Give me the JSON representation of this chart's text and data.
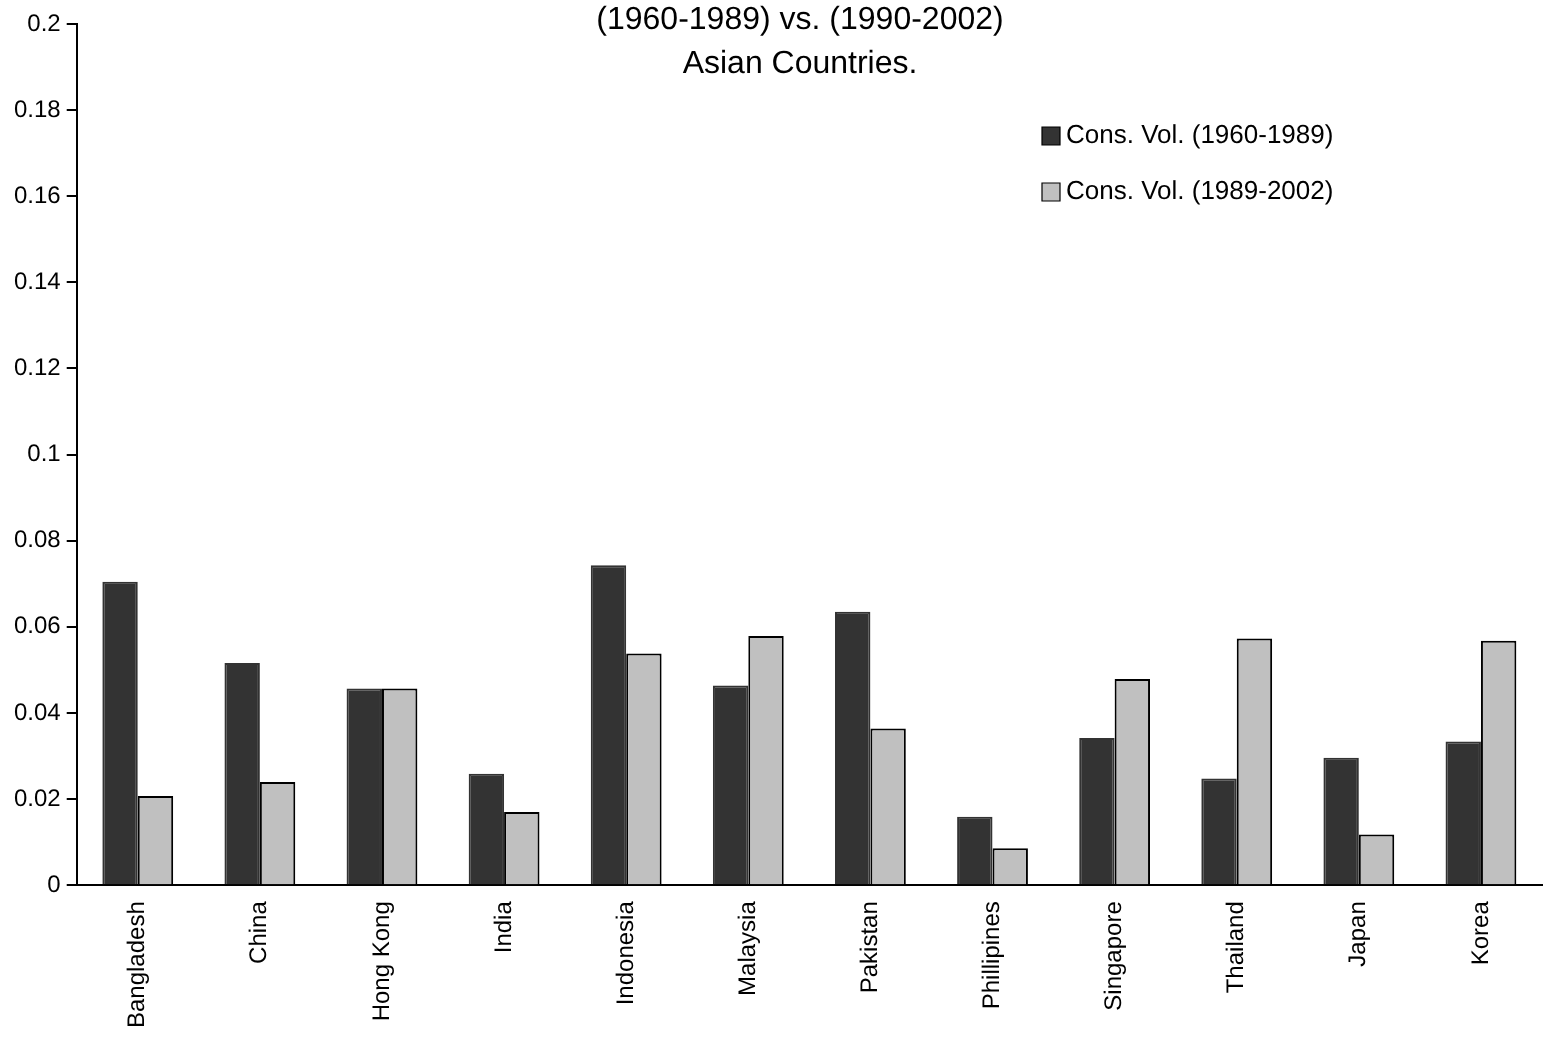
{
  "chart_data": {
    "type": "bar",
    "title": [
      "(1960-1989) vs. (1990-2002)",
      "Asian Countries."
    ],
    "categories": [
      "Bangladesh",
      "China",
      "Hong Kong",
      "India",
      "Indonesia",
      "Malaysia",
      "Pakistan",
      "Phillipines",
      "Singapore",
      "Thailand",
      "Japan",
      "Korea"
    ],
    "series": [
      {
        "name": "Cons. Vol. (1960-1989)",
        "color": "#333333",
        "values": [
          0.0705,
          0.0516,
          0.0457,
          0.0259,
          0.0743,
          0.0464,
          0.0635,
          0.0159,
          0.0342,
          0.0248,
          0.0296,
          0.0334
        ]
      },
      {
        "name": "Cons. Vol. (1989-2002)",
        "color": "#c0c0c0",
        "values": [
          0.0207,
          0.024,
          0.0457,
          0.017,
          0.0538,
          0.0579,
          0.0364,
          0.0086,
          0.0479,
          0.0573,
          0.0118,
          0.0568
        ]
      }
    ],
    "ylim": [
      0,
      0.2
    ],
    "yticks": [
      0,
      0.02,
      0.04,
      0.06,
      0.08,
      0.1,
      0.12,
      0.14,
      0.16,
      0.18,
      0.2
    ],
    "grid": false,
    "legend": "top right"
  }
}
